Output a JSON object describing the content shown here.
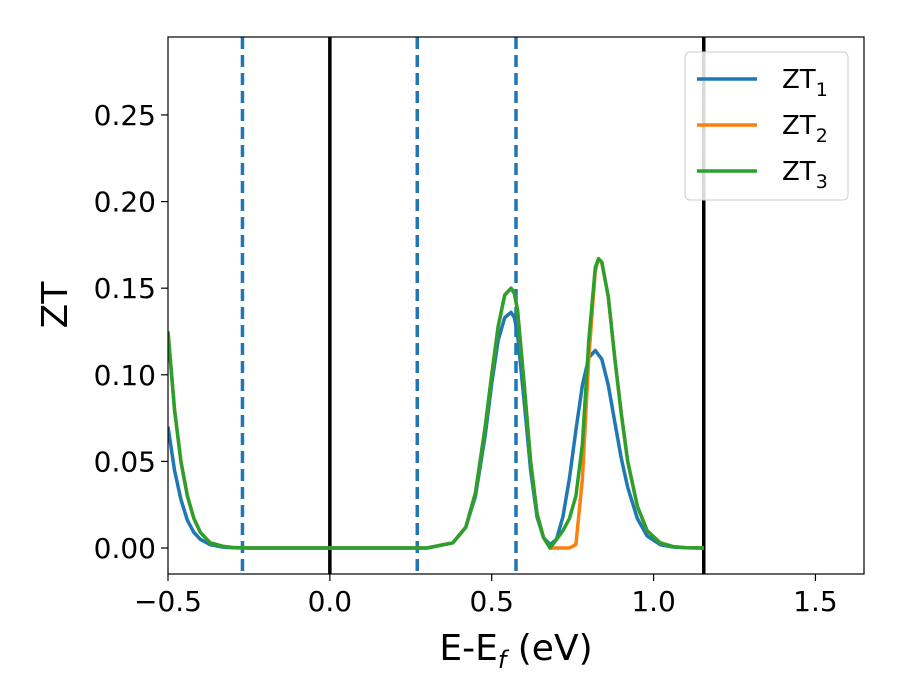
{
  "chart_data": {
    "type": "line",
    "title": "",
    "xlabel": {
      "main": "E-E",
      "sub": "f",
      "suffix": " (eV)"
    },
    "ylabel": "ZT",
    "xlim": [
      -0.5,
      1.65
    ],
    "ylim": [
      -0.015,
      0.295
    ],
    "xticks": [
      -0.5,
      0.0,
      0.5,
      1.0,
      1.5
    ],
    "xtick_labels": [
      "−0.5",
      "0.0",
      "0.5",
      "1.0",
      "1.5"
    ],
    "yticks": [
      0.0,
      0.05,
      0.1,
      0.15,
      0.2,
      0.25
    ],
    "ytick_labels": [
      "0.00",
      "0.05",
      "0.10",
      "0.15",
      "0.20",
      "0.25"
    ],
    "grid": false,
    "legend_position": "top-right",
    "vlines": [
      {
        "x": -0.27,
        "style": "dashed",
        "color": "#1f77b4"
      },
      {
        "x": 0.0,
        "style": "solid",
        "color": "#000000"
      },
      {
        "x": 0.27,
        "style": "dashed",
        "color": "#1f77b4"
      },
      {
        "x": 0.575,
        "style": "dashed",
        "color": "#1f77b4"
      },
      {
        "x": 1.155,
        "style": "solid",
        "color": "#000000"
      }
    ],
    "series": [
      {
        "name": "ZT",
        "sub": "1",
        "color": "#1f77b4",
        "x": [
          -0.5,
          -0.48,
          -0.46,
          -0.44,
          -0.42,
          -0.4,
          -0.37,
          -0.33,
          -0.3,
          -0.25,
          0.0,
          0.3,
          0.38,
          0.42,
          0.45,
          0.48,
          0.5,
          0.52,
          0.54,
          0.56,
          0.57,
          0.58,
          0.6,
          0.62,
          0.64,
          0.66,
          0.68,
          0.7,
          0.72,
          0.74,
          0.76,
          0.78,
          0.8,
          0.82,
          0.84,
          0.86,
          0.88,
          0.9,
          0.92,
          0.95,
          0.98,
          1.02,
          1.06,
          1.1,
          1.155
        ],
        "y": [
          0.07,
          0.045,
          0.028,
          0.016,
          0.009,
          0.005,
          0.002,
          0.0005,
          0.0002,
          0.0,
          0.0,
          0.0,
          0.003,
          0.012,
          0.03,
          0.065,
          0.095,
          0.12,
          0.133,
          0.136,
          0.133,
          0.123,
          0.085,
          0.045,
          0.018,
          0.006,
          0.002,
          0.005,
          0.018,
          0.04,
          0.068,
          0.094,
          0.11,
          0.114,
          0.109,
          0.094,
          0.073,
          0.052,
          0.035,
          0.017,
          0.007,
          0.002,
          0.0006,
          0.0001,
          0.0
        ]
      },
      {
        "name": "ZT",
        "sub": "2",
        "color": "#ff7f0e",
        "x": [
          -0.5,
          -0.48,
          -0.46,
          -0.44,
          -0.42,
          -0.4,
          -0.37,
          -0.33,
          -0.3,
          -0.25,
          0.0,
          0.3,
          0.38,
          0.42,
          0.45,
          0.48,
          0.5,
          0.52,
          0.54,
          0.56,
          0.57,
          0.58,
          0.6,
          0.62,
          0.64,
          0.66,
          0.68,
          0.7,
          0.72,
          0.74,
          0.76,
          0.78,
          0.8,
          0.82,
          0.83,
          0.84,
          0.86,
          0.88,
          0.9,
          0.92,
          0.95,
          0.98,
          1.02,
          1.06,
          1.1,
          1.155
        ],
        "y": [
          0.125,
          0.08,
          0.05,
          0.03,
          0.017,
          0.009,
          0.003,
          0.001,
          0.0003,
          0.0,
          0.0,
          0.0,
          0.003,
          0.012,
          0.032,
          0.07,
          0.1,
          0.128,
          0.146,
          0.15,
          0.147,
          0.137,
          0.095,
          0.05,
          0.02,
          0.006,
          0.0,
          0.0,
          0.0,
          0.0,
          0.002,
          0.04,
          0.11,
          0.16,
          0.167,
          0.165,
          0.145,
          0.11,
          0.078,
          0.05,
          0.024,
          0.01,
          0.003,
          0.0008,
          0.0002,
          0.0
        ]
      },
      {
        "name": "ZT",
        "sub": "3",
        "color": "#2ca02c",
        "x": [
          -0.5,
          -0.48,
          -0.46,
          -0.44,
          -0.42,
          -0.4,
          -0.37,
          -0.33,
          -0.3,
          -0.25,
          0.0,
          0.3,
          0.38,
          0.42,
          0.45,
          0.48,
          0.5,
          0.52,
          0.54,
          0.56,
          0.57,
          0.58,
          0.6,
          0.62,
          0.64,
          0.66,
          0.68,
          0.7,
          0.72,
          0.74,
          0.76,
          0.78,
          0.8,
          0.82,
          0.83,
          0.84,
          0.86,
          0.88,
          0.9,
          0.92,
          0.95,
          0.98,
          1.02,
          1.06,
          1.1,
          1.155
        ],
        "y": [
          0.125,
          0.08,
          0.05,
          0.03,
          0.017,
          0.009,
          0.003,
          0.001,
          0.0003,
          0.0,
          0.0,
          0.0,
          0.003,
          0.012,
          0.032,
          0.07,
          0.1,
          0.128,
          0.146,
          0.15,
          0.147,
          0.137,
          0.095,
          0.05,
          0.02,
          0.006,
          0.0,
          0.005,
          0.01,
          0.017,
          0.03,
          0.06,
          0.12,
          0.162,
          0.167,
          0.165,
          0.145,
          0.11,
          0.078,
          0.05,
          0.024,
          0.01,
          0.003,
          0.0008,
          0.0002,
          0.0
        ]
      }
    ]
  }
}
